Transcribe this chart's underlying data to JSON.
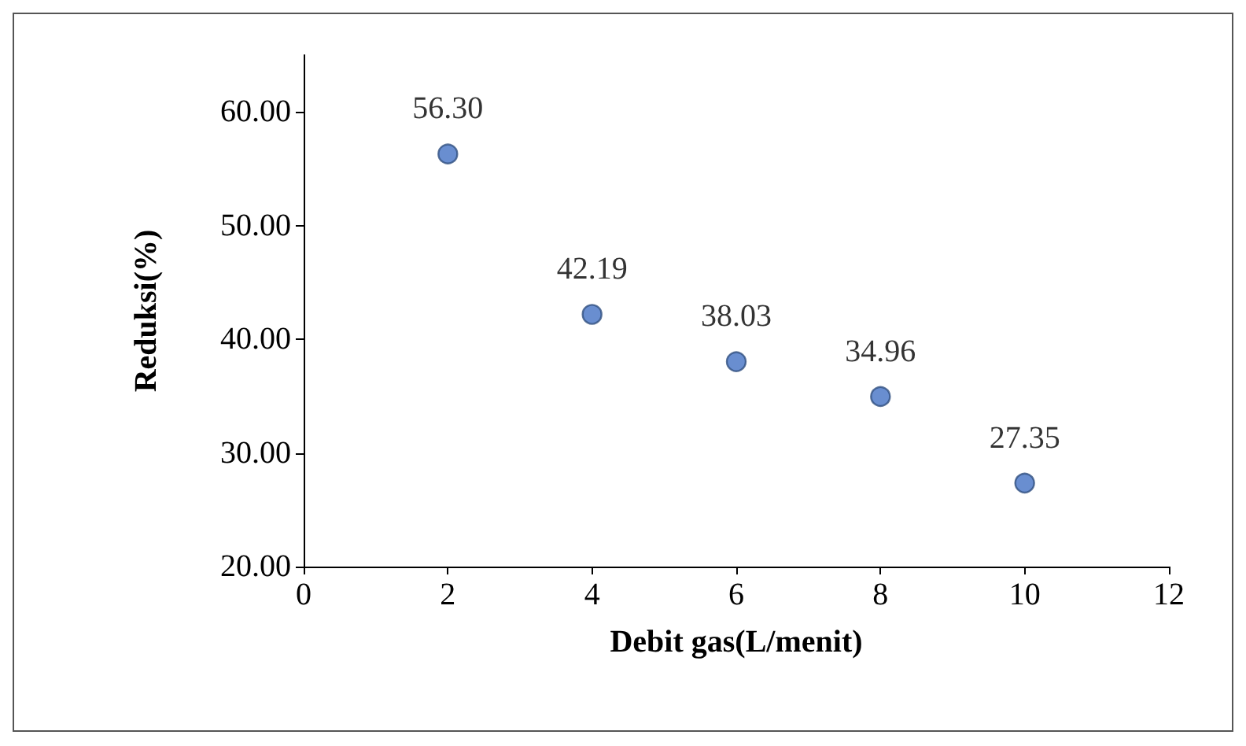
{
  "chart_data": {
    "type": "scatter",
    "xlabel": "Debit gas(L/menit)",
    "ylabel": "Reduksi(%)",
    "x": [
      2,
      4,
      6,
      8,
      10
    ],
    "series": [
      {
        "color": "#4472c4",
        "values": [
          56.3,
          42.19,
          38.03,
          34.96,
          27.35
        ],
        "value_labels": [
          "56.30",
          "42.19",
          "38.03",
          "34.96",
          "27.35"
        ]
      }
    ],
    "xlim": [
      0,
      12
    ],
    "xticks": [
      0,
      2,
      4,
      6,
      8,
      10,
      12
    ],
    "ylim": [
      20,
      65
    ],
    "yticks": [
      {
        "value": 20,
        "label": "20.00"
      },
      {
        "value": 30,
        "label": "30.00"
      },
      {
        "value": 40,
        "label": "40.00"
      },
      {
        "value": 50,
        "label": "50.00"
      },
      {
        "value": 60,
        "label": "60.00"
      }
    ],
    "grid": false,
    "marker": "circle"
  }
}
